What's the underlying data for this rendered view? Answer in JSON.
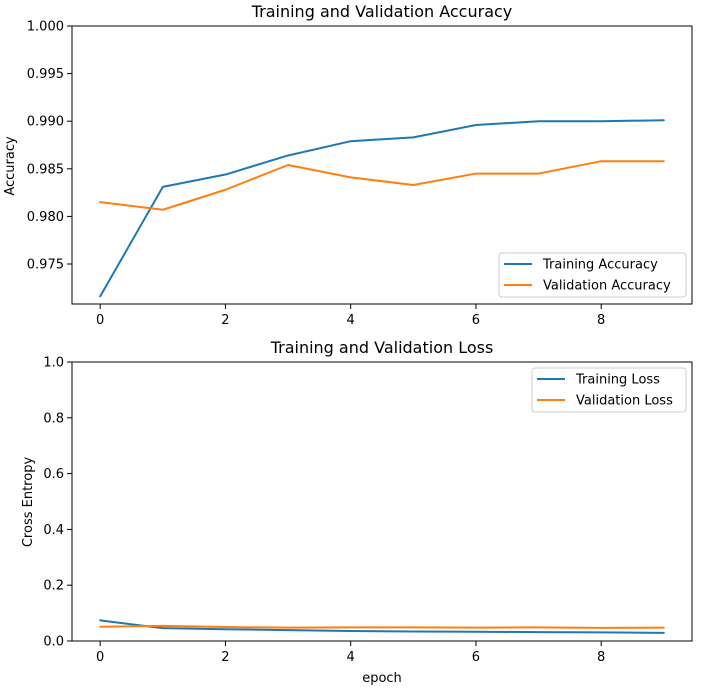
{
  "chart_data": [
    {
      "type": "line",
      "title": "Training and Validation Accuracy",
      "xlabel": "",
      "ylabel": "Accuracy",
      "xlim": [
        -0.45,
        9.45
      ],
      "ylim": [
        0.9708,
        1.0
      ],
      "xticks": [
        0,
        2,
        4,
        6,
        8
      ],
      "xtick_labels": [
        "0",
        "2",
        "4",
        "6",
        "8"
      ],
      "yticks": [
        0.975,
        0.98,
        0.985,
        0.99,
        0.995,
        1.0
      ],
      "ytick_labels": [
        "0.975",
        "0.980",
        "0.985",
        "0.990",
        "0.995",
        "1.000"
      ],
      "grid": false,
      "legend_position": "lower-right",
      "x": [
        0,
        1,
        2,
        3,
        4,
        5,
        6,
        7,
        8,
        9
      ],
      "series": [
        {
          "name": "Training Accuracy",
          "color": "#1f77b4",
          "values": [
            0.9716,
            0.9831,
            0.9844,
            0.9864,
            0.9879,
            0.9883,
            0.9896,
            0.99,
            0.99,
            0.9901
          ]
        },
        {
          "name": "Validation Accuracy",
          "color": "#ff7f0e",
          "values": [
            0.9815,
            0.9807,
            0.9828,
            0.9854,
            0.9841,
            0.9833,
            0.9845,
            0.9845,
            0.9858,
            0.9858
          ]
        }
      ]
    },
    {
      "type": "line",
      "title": "Training and Validation Loss",
      "xlabel": "epoch",
      "ylabel": "Cross Entropy",
      "xlim": [
        -0.45,
        9.45
      ],
      "ylim": [
        0.0,
        1.0
      ],
      "xticks": [
        0,
        2,
        4,
        6,
        8
      ],
      "xtick_labels": [
        "0",
        "2",
        "4",
        "6",
        "8"
      ],
      "yticks": [
        0.0,
        0.2,
        0.4,
        0.6,
        0.8,
        1.0
      ],
      "ytick_labels": [
        "0.0",
        "0.2",
        "0.4",
        "0.6",
        "0.8",
        "1.0"
      ],
      "grid": false,
      "legend_position": "upper-right",
      "x": [
        0,
        1,
        2,
        3,
        4,
        5,
        6,
        7,
        8,
        9
      ],
      "series": [
        {
          "name": "Training Loss",
          "color": "#1f77b4",
          "values": [
            0.074,
            0.046,
            0.042,
            0.039,
            0.036,
            0.034,
            0.033,
            0.032,
            0.031,
            0.029
          ]
        },
        {
          "name": "Validation Loss",
          "color": "#ff7f0e",
          "values": [
            0.051,
            0.054,
            0.05,
            0.048,
            0.049,
            0.049,
            0.048,
            0.049,
            0.047,
            0.048
          ]
        }
      ]
    }
  ]
}
